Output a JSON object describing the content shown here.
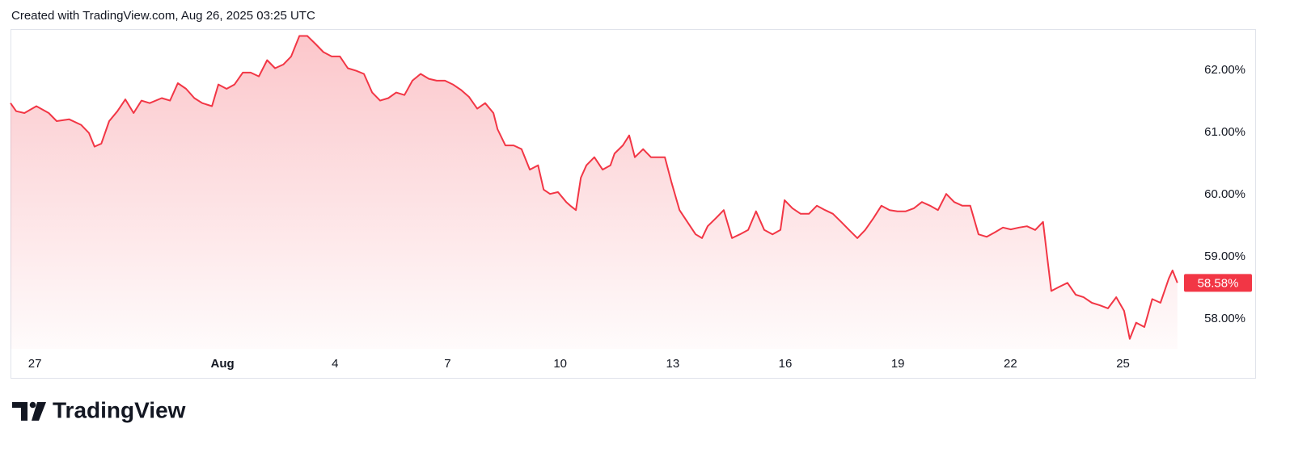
{
  "chart_data": {
    "type": "area",
    "caption": "Created with TradingView.com, Aug 26, 2025 03:25 UTC",
    "brand": "TradingView",
    "color": "#f23645",
    "x": [
      -0.65,
      -0.5,
      -0.28,
      0.04,
      0.37,
      0.58,
      0.91,
      1.23,
      1.44,
      1.59,
      1.77,
      1.98,
      2.2,
      2.41,
      2.63,
      2.84,
      3.06,
      3.38,
      3.6,
      3.81,
      4.03,
      4.25,
      4.46,
      4.72,
      4.89,
      5.11,
      5.32,
      5.54,
      5.75,
      5.97,
      6.19,
      6.4,
      6.62,
      6.83,
      7.05,
      7.26,
      7.48,
      7.69,
      7.91,
      8.13,
      8.34,
      8.56,
      8.77,
      8.99,
      9.2,
      9.42,
      9.63,
      9.85,
      10.06,
      10.28,
      10.5,
      10.71,
      10.93,
      11.14,
      11.36,
      11.57,
      11.79,
      12.0,
      12.22,
      12.33,
      12.54,
      12.76,
      12.97,
      13.19,
      13.41,
      13.56,
      13.73,
      13.94,
      14.16,
      14.27,
      14.42,
      14.55,
      14.7,
      14.91,
      15.13,
      15.34,
      15.45,
      15.67,
      15.84,
      15.99,
      16.21,
      16.42,
      16.64,
      16.79,
      16.96,
      17.18,
      17.39,
      17.61,
      17.78,
      17.93,
      18.15,
      18.36,
      18.58,
      18.79,
      19.01,
      19.22,
      19.44,
      19.66,
      19.87,
      19.98,
      20.19,
      20.41,
      20.63,
      20.84,
      21.06,
      21.27,
      21.49,
      21.7,
      21.92,
      22.13,
      22.35,
      22.56,
      22.78,
      22.99,
      23.21,
      23.43,
      23.64,
      23.86,
      24.07,
      24.29,
      24.5,
      24.72,
      24.93,
      25.15,
      25.37,
      25.58,
      25.8,
      26.01,
      26.23,
      26.44,
      26.66,
      26.87,
      26.98,
      27.09,
      27.31,
      27.52,
      27.74,
      27.95,
      28.17,
      28.38,
      28.6,
      28.82,
      29.03,
      29.18,
      29.35,
      29.57,
      29.78,
      30.0,
      30.22,
      30.32,
      30.45
    ],
    "values": [
      61.47,
      61.34,
      61.31,
      61.42,
      61.31,
      61.18,
      61.21,
      61.12,
      60.99,
      60.77,
      60.82,
      61.18,
      61.34,
      61.53,
      61.31,
      61.51,
      61.47,
      61.55,
      61.51,
      61.79,
      61.7,
      61.55,
      61.47,
      61.42,
      61.77,
      61.7,
      61.77,
      61.96,
      61.96,
      61.9,
      62.16,
      62.03,
      62.09,
      62.22,
      62.55,
      62.55,
      62.42,
      62.29,
      62.22,
      62.22,
      62.03,
      61.99,
      61.94,
      61.64,
      61.51,
      61.55,
      61.64,
      61.6,
      61.83,
      61.94,
      61.86,
      61.83,
      61.83,
      61.77,
      61.68,
      61.57,
      61.38,
      61.47,
      61.31,
      61.05,
      60.79,
      60.79,
      60.73,
      60.4,
      60.47,
      60.08,
      60.01,
      60.04,
      59.88,
      59.82,
      59.75,
      60.27,
      60.47,
      60.6,
      60.4,
      60.47,
      60.66,
      60.79,
      60.95,
      60.6,
      60.73,
      60.6,
      60.6,
      60.6,
      60.21,
      59.75,
      59.56,
      59.36,
      59.3,
      59.49,
      59.62,
      59.75,
      59.3,
      59.36,
      59.43,
      59.73,
      59.43,
      59.36,
      59.43,
      59.91,
      59.78,
      59.69,
      59.69,
      59.82,
      59.75,
      59.69,
      59.56,
      59.43,
      59.3,
      59.43,
      59.62,
      59.82,
      59.75,
      59.73,
      59.73,
      59.78,
      59.88,
      59.82,
      59.75,
      60.01,
      59.88,
      59.82,
      59.82,
      59.36,
      59.32,
      59.39,
      59.47,
      59.44,
      59.47,
      59.49,
      59.43,
      59.56,
      59.0,
      58.45,
      58.52,
      58.58,
      58.39,
      58.35,
      58.26,
      58.22,
      58.17,
      58.35,
      58.13,
      57.68,
      57.94,
      57.87,
      58.32,
      58.26,
      58.65,
      58.78,
      58.58
    ],
    "current_value": {
      "value": 58.58,
      "label": "58.58%"
    },
    "xlim": [
      -0.65,
      30.54
    ],
    "xticks": [
      {
        "value": 0,
        "label": "27"
      },
      {
        "value": 5,
        "label": "Aug"
      },
      {
        "value": 8,
        "label": "4"
      },
      {
        "value": 11,
        "label": "7"
      },
      {
        "value": 14,
        "label": "10"
      },
      {
        "value": 17,
        "label": "13"
      },
      {
        "value": 20,
        "label": "16"
      },
      {
        "value": 23,
        "label": "19"
      },
      {
        "value": 26,
        "label": "22"
      },
      {
        "value": 29,
        "label": "25"
      }
    ],
    "ylim": [
      57.52,
      62.66
    ],
    "yticks": [
      {
        "value": 58,
        "label": "58.00%"
      },
      {
        "value": 59,
        "label": "59.00%"
      },
      {
        "value": 60,
        "label": "60.00%"
      },
      {
        "value": 61,
        "label": "61.00%"
      },
      {
        "value": 62,
        "label": "62.00%"
      }
    ],
    "grid": false
  }
}
